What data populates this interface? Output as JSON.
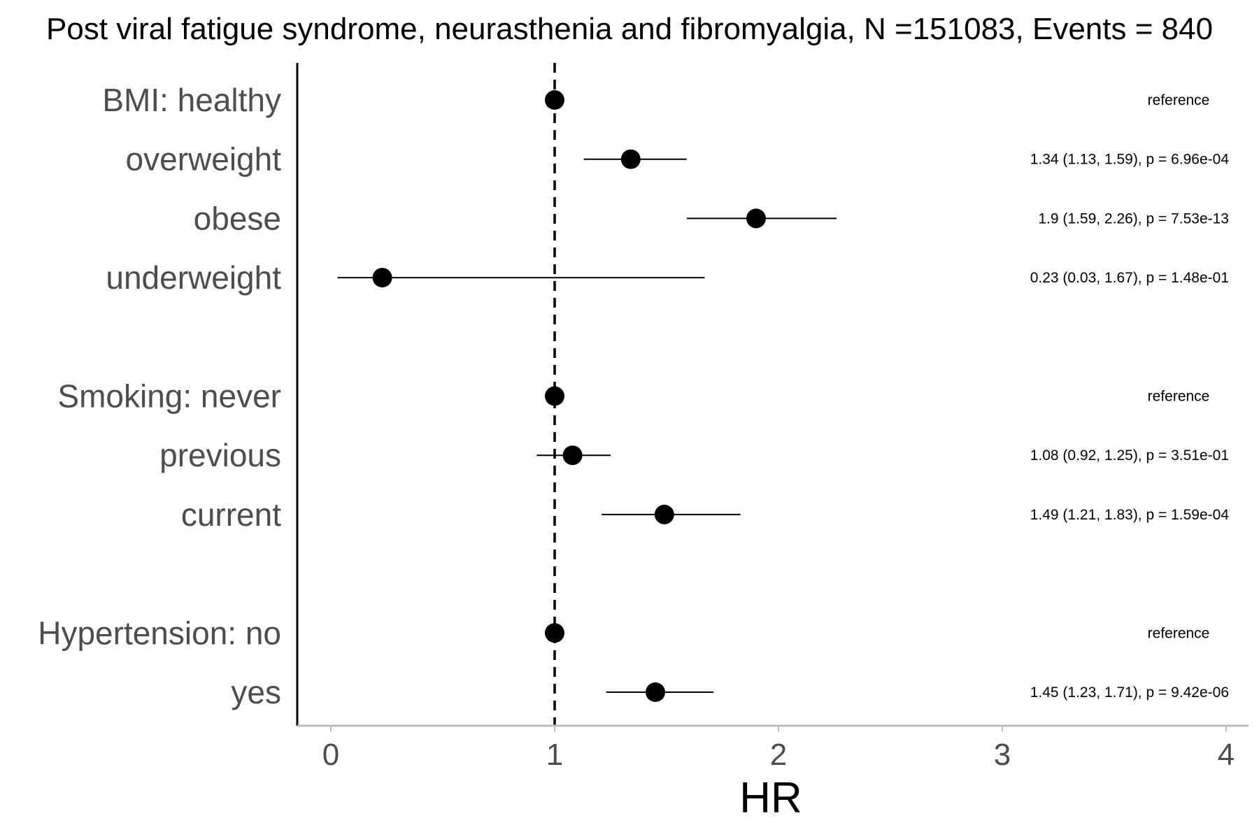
{
  "chart_data": {
    "type": "forest",
    "title": "Post viral fatigue syndrome, neurasthenia and fibromyalgia, N =151083, Events = 840",
    "xlabel": "HR",
    "xlim": [
      -0.15,
      4.1
    ],
    "xticks": [
      0,
      1,
      2,
      3,
      4
    ],
    "reference_line": 1,
    "rows": [
      {
        "label": "BMI: healthy",
        "hr": 1,
        "lower": null,
        "upper": null,
        "annotation": "reference"
      },
      {
        "label": "overweight",
        "hr": 1.34,
        "lower": 1.13,
        "upper": 1.59,
        "annotation": "1.34 (1.13, 1.59), p = 6.96e-04"
      },
      {
        "label": "obese",
        "hr": 1.9,
        "lower": 1.59,
        "upper": 2.26,
        "annotation": "1.9 (1.59, 2.26), p = 7.53e-13"
      },
      {
        "label": "underweight",
        "hr": 0.23,
        "lower": 0.03,
        "upper": 1.67,
        "annotation": "0.23 (0.03, 1.67), p = 1.48e-01"
      },
      {
        "label": "",
        "spacer": true
      },
      {
        "label": "Smoking: never",
        "hr": 1,
        "lower": null,
        "upper": null,
        "annotation": "reference"
      },
      {
        "label": "previous",
        "hr": 1.08,
        "lower": 0.92,
        "upper": 1.25,
        "annotation": "1.08 (0.92, 1.25), p = 3.51e-01"
      },
      {
        "label": "current",
        "hr": 1.49,
        "lower": 1.21,
        "upper": 1.83,
        "annotation": "1.49 (1.21, 1.83), p = 1.59e-04"
      },
      {
        "label": "",
        "spacer": true
      },
      {
        "label": "Hypertension: no",
        "hr": 1,
        "lower": null,
        "upper": null,
        "annotation": "reference"
      },
      {
        "label": "yes",
        "hr": 1.45,
        "lower": 1.23,
        "upper": 1.71,
        "annotation": "1.45 (1.23, 1.71), p = 9.42e-06"
      }
    ]
  }
}
